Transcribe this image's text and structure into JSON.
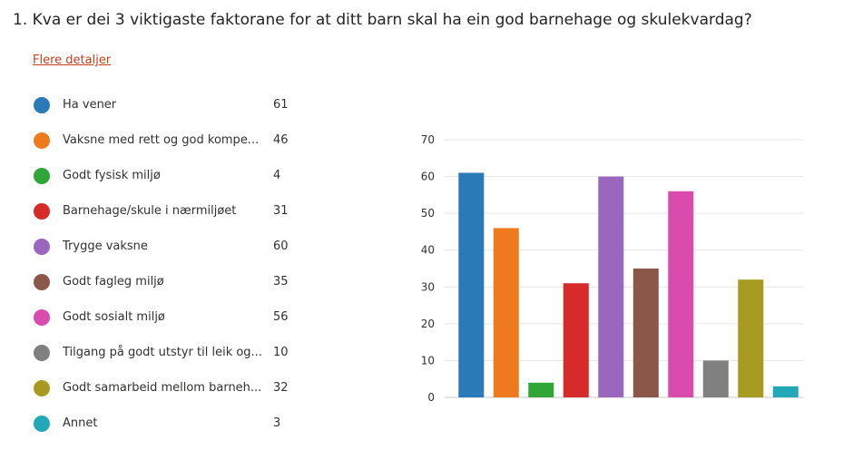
{
  "question": {
    "number": "1.",
    "text": "Kva er dei 3 viktigaste faktorane for at ditt barn skal ha ein god barnehage og skulekvardag?"
  },
  "details_link": "Flere detaljer",
  "legend": [
    {
      "label": "Ha vener",
      "count": "61",
      "color": "#2a7ab8"
    },
    {
      "label": "Vaksne med rett og god kompe...",
      "count": "46",
      "color": "#ee7a1e"
    },
    {
      "label": "Godt fysisk miljø",
      "count": "4",
      "color": "#2fa637"
    },
    {
      "label": "Barnehage/skule i nærmiljøet",
      "count": "31",
      "color": "#d72b2b"
    },
    {
      "label": "Trygge vaksne",
      "count": "60",
      "color": "#9a67bf"
    },
    {
      "label": "Godt fagleg miljø",
      "count": "35",
      "color": "#8a5748"
    },
    {
      "label": "Godt sosialt miljø",
      "count": "56",
      "color": "#d94bad"
    },
    {
      "label": "Tilgang på godt utstyr til leik og...",
      "count": "10",
      "color": "#808080"
    },
    {
      "label": "Godt samarbeid mellom barneh...",
      "count": "32",
      "color": "#a89a20"
    },
    {
      "label": "Annet",
      "count": "3",
      "color": "#23a8b8"
    }
  ],
  "chart_data": {
    "type": "bar",
    "categories": [
      "Ha vener",
      "Vaksne med rett og god kompe...",
      "Godt fysisk miljø",
      "Barnehage/skule i nærmiljøet",
      "Trygge vaksne",
      "Godt fagleg miljø",
      "Godt sosialt miljø",
      "Tilgang på godt utstyr til leik og...",
      "Godt samarbeid mellom barneh...",
      "Annet"
    ],
    "values": [
      61,
      46,
      4,
      31,
      60,
      35,
      56,
      10,
      32,
      3
    ],
    "colors": [
      "#2a7ab8",
      "#ee7a1e",
      "#2fa637",
      "#d72b2b",
      "#9a67bf",
      "#8a5748",
      "#d94bad",
      "#808080",
      "#a89a20",
      "#23a8b8"
    ],
    "ylim": [
      0,
      70
    ],
    "yticks": [
      "0",
      "10",
      "20",
      "30",
      "40",
      "50",
      "60",
      "70"
    ],
    "grid": true,
    "legend": "left"
  }
}
